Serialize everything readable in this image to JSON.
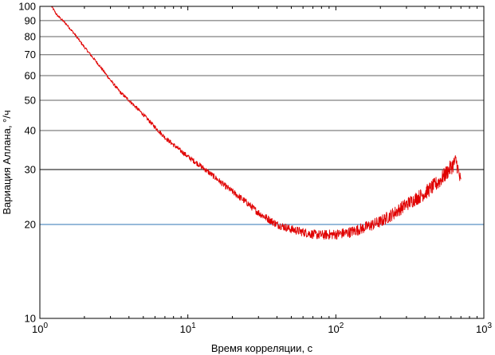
{
  "chart_data": {
    "type": "line",
    "title": "",
    "xlabel": "Время корреляции, с",
    "ylabel": "Вариация Аллана, °/ч",
    "x_scale": "log",
    "y_scale": "log",
    "xlim": [
      1,
      1000
    ],
    "ylim": [
      10,
      100
    ],
    "x_ticks": [
      {
        "value": 1,
        "base": "10",
        "exp": "0"
      },
      {
        "value": 10,
        "base": "10",
        "exp": "1"
      },
      {
        "value": 100,
        "base": "10",
        "exp": "2"
      },
      {
        "value": 1000,
        "base": "10",
        "exp": "3"
      }
    ],
    "y_ticks": [
      {
        "value": 10,
        "label": "10"
      },
      {
        "value": 20,
        "label": "20"
      },
      {
        "value": 30,
        "label": "30"
      },
      {
        "value": 40,
        "label": "40"
      },
      {
        "value": 50,
        "label": "50"
      },
      {
        "value": 60,
        "label": "60"
      },
      {
        "value": 70,
        "label": "70"
      },
      {
        "value": 80,
        "label": "80"
      },
      {
        "value": 90,
        "label": "90"
      },
      {
        "value": 100,
        "label": "100"
      }
    ],
    "grid": "horizontal",
    "gridline_colors": {
      "20": "#2e75b6",
      "30": "#000000",
      "default": "#606060"
    },
    "series": [
      {
        "color": "#e00000",
        "x": [
          1.2,
          1.3,
          1.5,
          1.7,
          2,
          2.5,
          3,
          3.5,
          4,
          5,
          6,
          7,
          8,
          10,
          12,
          15,
          18,
          20,
          25,
          30,
          35,
          40,
          50,
          60,
          70,
          80,
          100,
          120,
          150,
          200,
          250,
          300,
          400,
          500,
          550,
          600,
          650,
          700
        ],
        "y": [
          100,
          94,
          88,
          82,
          74,
          65,
          58,
          53,
          50,
          45,
          41,
          38,
          36,
          33,
          31,
          28.5,
          26.5,
          25.5,
          23.5,
          21.8,
          20.8,
          20,
          19.3,
          18.9,
          18.6,
          18.5,
          18.6,
          18.8,
          19.4,
          20.4,
          21.8,
          23.2,
          25.2,
          27.5,
          29,
          30.5,
          32,
          27
        ]
      }
    ]
  }
}
